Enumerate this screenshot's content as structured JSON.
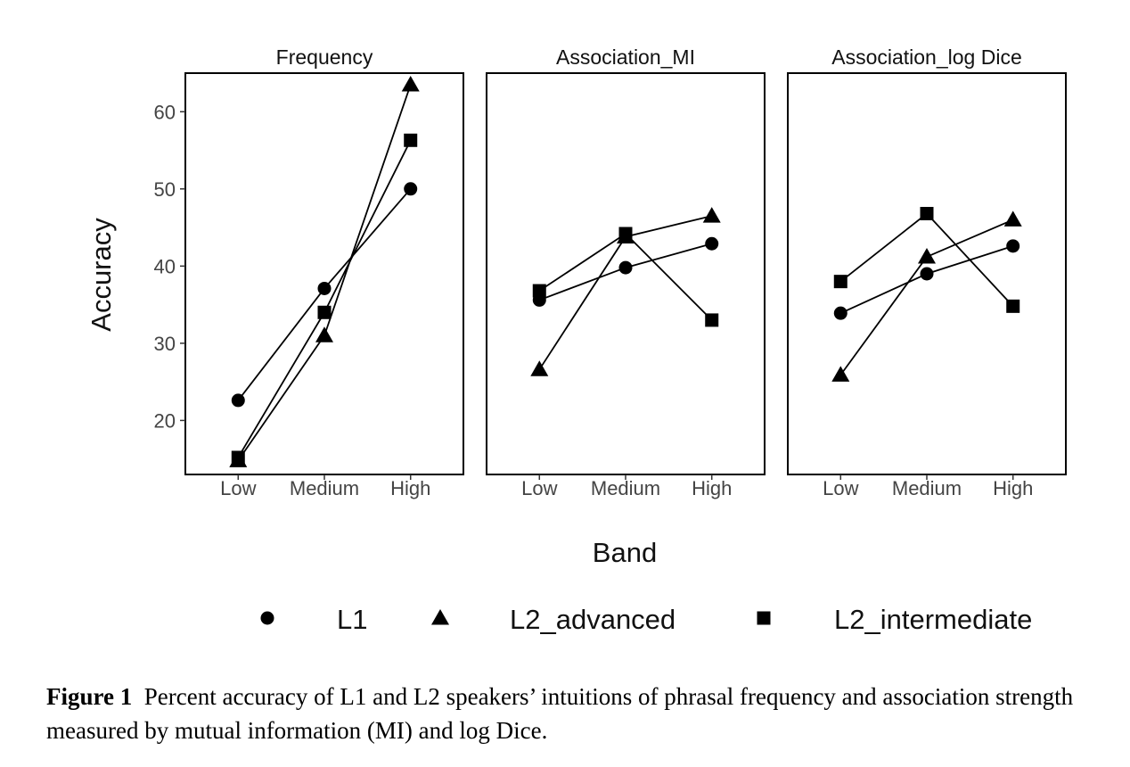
{
  "chart_data": {
    "type": "line",
    "ylabel": "Accuracy",
    "xlabel": "Band",
    "categories": [
      "Low",
      "Medium",
      "High"
    ],
    "yticks": [
      20,
      30,
      40,
      50,
      60
    ],
    "ylim": [
      13,
      65
    ],
    "grid": false,
    "legend_position": "bottom",
    "legend": [
      {
        "name": "L1",
        "marker": "circle"
      },
      {
        "name": "L2_advanced",
        "marker": "triangle"
      },
      {
        "name": "L2_intermediate",
        "marker": "square"
      }
    ],
    "panels": [
      {
        "title": "Frequency",
        "series": [
          {
            "name": "L1",
            "marker": "circle",
            "values": [
              22.6,
              37.1,
              50.0
            ]
          },
          {
            "name": "L2_advanced",
            "marker": "triangle",
            "values": [
              14.8,
              31.0,
              63.5
            ]
          },
          {
            "name": "L2_intermediate",
            "marker": "square",
            "values": [
              15.2,
              34.0,
              56.3
            ]
          }
        ]
      },
      {
        "title": "Association_MI",
        "series": [
          {
            "name": "L1",
            "marker": "circle",
            "values": [
              35.6,
              39.8,
              42.9
            ]
          },
          {
            "name": "L2_advanced",
            "marker": "triangle",
            "values": [
              26.6,
              43.8,
              46.5
            ]
          },
          {
            "name": "L2_intermediate",
            "marker": "square",
            "values": [
              36.8,
              44.2,
              33.0
            ]
          }
        ]
      },
      {
        "title": "Association_log Dice",
        "series": [
          {
            "name": "L1",
            "marker": "circle",
            "values": [
              33.9,
              39.0,
              42.6
            ]
          },
          {
            "name": "L2_advanced",
            "marker": "triangle",
            "values": [
              25.9,
              41.2,
              46.0
            ]
          },
          {
            "name": "L2_intermediate",
            "marker": "square",
            "values": [
              38.0,
              46.8,
              34.8
            ]
          }
        ]
      }
    ]
  },
  "caption": {
    "label": "Figure 1",
    "text": "Percent accuracy of L1 and L2 speakers’ intuitions of phrasal frequency and association strength measured by mutual information (MI) and log Dice."
  }
}
